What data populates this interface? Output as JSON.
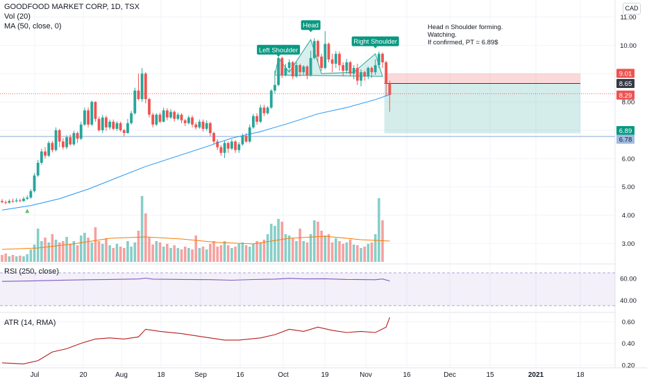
{
  "header": {
    "title": "GOODFOOD MARKET CORP, 1D, TSX",
    "volume_label": "Vol (20)",
    "ma_label": "MA (50, close, 0)"
  },
  "currency": "CAD",
  "note": {
    "line1": "Head n Shoulder forming.",
    "line2": "Watching.",
    "line3": "If confirmed, PT = 6.89$"
  },
  "colors": {
    "up": "#26a69a",
    "down": "#ef5350",
    "ma": "#2196f3",
    "vol_ma": "#f57c00",
    "rsi": "#7e57c2",
    "atr": "#b71c1c",
    "pattern_fill": "#26a69a"
  },
  "chart_data": [
    {
      "type": "candlestick",
      "title": "GOODFOOD MARKET CORP, 1D, TSX",
      "y_axis": {
        "ticks": [
          3.0,
          4.0,
          5.0,
          6.0,
          7.0,
          8.0,
          9.0,
          10.0,
          11.0
        ],
        "ylim": [
          2.35,
          11.6
        ]
      },
      "x_axis": {
        "ticks": [
          "Jul",
          "20",
          "Aug",
          "18",
          "Sep",
          "16",
          "Oct",
          "19",
          "Nov",
          "16",
          "Dec",
          "15",
          "2021",
          "18"
        ]
      },
      "price_labels": [
        {
          "value": "9.01",
          "color": "#ef5350"
        },
        {
          "value": "8.65",
          "color": "#363a45"
        },
        {
          "value": "8.29",
          "color": "#ef5350"
        },
        {
          "value": "6.89",
          "color": "#089981"
        },
        {
          "value": "6.78",
          "color": "#9fbadf"
        }
      ],
      "annotations": [
        "Left Shoulder",
        "Head",
        "Right Shoulder"
      ],
      "position": {
        "entry": 8.65,
        "stop": 9.01,
        "target": 6.89
      },
      "support_line": 6.78,
      "candles": [
        [
          4.5,
          4.46,
          4.57,
          4.42
        ],
        [
          4.46,
          4.44,
          4.52,
          4.38
        ],
        [
          4.44,
          4.5,
          4.56,
          4.4
        ],
        [
          4.5,
          4.49,
          4.58,
          4.44
        ],
        [
          4.49,
          4.52,
          4.6,
          4.45
        ],
        [
          4.52,
          4.5,
          4.58,
          4.46
        ],
        [
          4.5,
          4.58,
          4.65,
          4.47
        ],
        [
          4.58,
          4.62,
          4.7,
          4.53
        ],
        [
          4.62,
          4.85,
          4.92,
          4.58
        ],
        [
          4.85,
          5.4,
          5.48,
          4.8
        ],
        [
          5.4,
          5.85,
          5.95,
          5.35
        ],
        [
          5.85,
          6.25,
          6.35,
          5.78
        ],
        [
          6.25,
          6.1,
          6.4,
          6.0
        ],
        [
          6.1,
          6.55,
          6.62,
          6.05
        ],
        [
          6.55,
          6.3,
          6.62,
          6.22
        ],
        [
          6.3,
          7.0,
          7.1,
          6.25
        ],
        [
          7.0,
          6.6,
          7.05,
          6.4
        ],
        [
          6.6,
          6.4,
          6.72,
          6.32
        ],
        [
          6.4,
          6.75,
          6.82,
          6.33
        ],
        [
          6.75,
          6.5,
          6.85,
          6.45
        ],
        [
          6.5,
          6.9,
          6.98,
          6.45
        ],
        [
          6.9,
          6.7,
          6.95,
          6.55
        ],
        [
          6.7,
          7.2,
          7.3,
          6.65
        ],
        [
          7.2,
          7.7,
          7.8,
          7.15
        ],
        [
          7.7,
          7.2,
          7.8,
          7.1
        ],
        [
          7.2,
          8.0,
          8.05,
          7.15
        ],
        [
          8.0,
          7.4,
          8.02,
          7.3
        ],
        [
          7.4,
          7.0,
          7.48,
          6.95
        ],
        [
          7.0,
          7.45,
          7.55,
          6.9
        ],
        [
          7.45,
          7.1,
          7.52,
          6.98
        ],
        [
          7.1,
          7.3,
          7.38,
          7.02
        ],
        [
          7.3,
          7.05,
          7.38,
          7.0
        ],
        [
          7.05,
          7.25,
          7.32,
          6.98
        ],
        [
          7.25,
          7.0,
          7.3,
          6.95
        ],
        [
          7.0,
          6.9,
          7.05,
          6.78
        ],
        [
          6.9,
          7.25,
          7.4,
          6.88
        ],
        [
          7.25,
          7.6,
          7.68,
          7.2
        ],
        [
          7.6,
          8.4,
          8.5,
          7.55
        ],
        [
          8.4,
          8.1,
          9.0,
          8.05
        ],
        [
          8.1,
          9.0,
          9.2,
          8.0
        ],
        [
          9.0,
          8.1,
          9.05,
          7.95
        ],
        [
          8.1,
          7.55,
          8.15,
          7.45
        ],
        [
          7.55,
          7.2,
          7.62,
          7.1
        ],
        [
          7.2,
          7.55,
          7.6,
          7.15
        ],
        [
          7.55,
          7.3,
          7.62,
          7.25
        ],
        [
          7.3,
          7.7,
          7.8,
          7.28
        ],
        [
          7.7,
          7.45,
          7.78,
          7.35
        ],
        [
          7.45,
          7.65,
          7.75,
          7.4
        ],
        [
          7.65,
          7.4,
          7.7,
          7.3
        ],
        [
          7.4,
          7.55,
          7.62,
          7.35
        ],
        [
          7.55,
          7.35,
          7.6,
          7.25
        ],
        [
          7.35,
          7.25,
          7.4,
          7.15
        ],
        [
          7.25,
          7.45,
          7.52,
          7.2
        ],
        [
          7.45,
          7.2,
          7.52,
          7.1
        ],
        [
          7.2,
          7.1,
          7.28,
          7.02
        ],
        [
          7.1,
          7.3,
          7.38,
          7.05
        ],
        [
          7.3,
          7.05,
          7.38,
          6.95
        ],
        [
          7.05,
          7.25,
          7.35,
          6.98
        ],
        [
          7.25,
          6.9,
          7.3,
          6.8
        ],
        [
          6.9,
          6.6,
          6.95,
          6.5
        ],
        [
          6.6,
          6.4,
          6.68,
          6.3
        ],
        [
          6.4,
          6.2,
          6.48,
          6.1
        ],
        [
          6.2,
          6.55,
          6.62,
          6.02
        ],
        [
          6.55,
          6.35,
          6.6,
          6.2
        ],
        [
          6.35,
          6.6,
          6.68,
          6.3
        ],
        [
          6.6,
          6.3,
          6.65,
          6.2
        ],
        [
          6.3,
          6.5,
          6.58,
          6.2
        ],
        [
          6.5,
          6.8,
          6.88,
          6.45
        ],
        [
          6.8,
          6.6,
          6.9,
          6.55
        ],
        [
          6.6,
          7.1,
          7.2,
          6.55
        ],
        [
          7.1,
          7.5,
          7.58,
          7.05
        ],
        [
          7.5,
          7.3,
          7.6,
          7.2
        ],
        [
          7.3,
          7.8,
          7.9,
          7.25
        ],
        [
          7.8,
          7.6,
          7.9,
          7.5
        ],
        [
          7.6,
          7.8,
          7.85,
          7.55
        ],
        [
          7.8,
          8.4,
          8.45,
          7.75
        ],
        [
          8.4,
          8.6,
          9.1,
          8.3
        ],
        [
          8.6,
          9.55,
          9.6,
          8.55
        ],
        [
          9.55,
          8.95,
          9.6,
          8.85
        ],
        [
          8.95,
          9.2,
          9.35,
          8.9
        ],
        [
          9.2,
          9.4,
          9.5,
          9.05
        ],
        [
          9.4,
          8.9,
          9.45,
          8.8
        ],
        [
          8.9,
          9.3,
          9.4,
          8.85
        ],
        [
          9.3,
          9.05,
          9.35,
          8.9
        ],
        [
          9.05,
          9.25,
          9.3,
          8.95
        ],
        [
          9.25,
          8.95,
          9.3,
          8.8
        ],
        [
          8.95,
          9.55,
          9.8,
          8.9
        ],
        [
          9.55,
          10.15,
          10.25,
          9.5
        ],
        [
          10.15,
          9.6,
          10.2,
          9.4
        ],
        [
          9.6,
          9.2,
          9.7,
          9.1
        ],
        [
          9.2,
          10.05,
          10.5,
          9.15
        ],
        [
          10.05,
          9.5,
          10.1,
          9.4
        ],
        [
          9.5,
          9.35,
          9.7,
          9.05
        ],
        [
          9.35,
          9.7,
          9.8,
          9.2
        ],
        [
          9.7,
          9.3,
          9.78,
          9.1
        ],
        [
          9.3,
          9.1,
          9.4,
          8.9
        ],
        [
          9.1,
          9.4,
          9.52,
          9.0
        ],
        [
          9.4,
          9.0,
          9.45,
          8.9
        ],
        [
          9.0,
          9.2,
          9.3,
          8.8
        ],
        [
          9.2,
          8.75,
          9.35,
          8.6
        ],
        [
          8.75,
          9.05,
          9.15,
          8.55
        ],
        [
          9.05,
          8.9,
          9.1,
          8.75
        ],
        [
          8.9,
          9.2,
          9.25,
          8.8
        ],
        [
          9.2,
          9.05,
          9.25,
          8.85
        ],
        [
          9.05,
          9.3,
          9.5,
          8.95
        ],
        [
          9.3,
          9.7,
          9.78,
          9.2
        ],
        [
          9.7,
          9.4,
          9.75,
          9.2
        ],
        [
          9.4,
          8.65,
          9.45,
          8.2
        ],
        [
          8.65,
          8.25,
          8.75,
          7.65
        ]
      ],
      "ma50": [
        [
          0,
          4.18
        ],
        [
          8,
          4.34
        ],
        [
          16,
          4.58
        ],
        [
          24,
          4.92
        ],
        [
          32,
          5.32
        ],
        [
          40,
          5.72
        ],
        [
          48,
          6.05
        ],
        [
          56,
          6.38
        ],
        [
          64,
          6.72
        ],
        [
          72,
          6.95
        ],
        [
          80,
          7.25
        ],
        [
          88,
          7.58
        ],
        [
          96,
          7.8
        ],
        [
          104,
          8.08
        ],
        [
          108,
          8.26
        ]
      ],
      "volume_scale_max": 100,
      "volume": [
        10,
        12,
        8,
        10,
        8,
        9,
        8,
        11,
        18,
        25,
        48,
        30,
        35,
        28,
        40,
        32,
        28,
        30,
        36,
        26,
        30,
        24,
        38,
        42,
        35,
        28,
        50,
        30,
        26,
        34,
        24,
        20,
        26,
        22,
        20,
        30,
        22,
        28,
        45,
        95,
        70,
        35,
        25,
        30,
        28,
        22,
        26,
        20,
        24,
        20,
        18,
        22,
        20,
        18,
        38,
        20,
        22,
        18,
        26,
        30,
        22,
        24,
        30,
        24,
        20,
        22,
        26,
        28,
        24,
        22,
        26,
        30,
        28,
        32,
        40,
        55,
        52,
        62,
        58,
        40,
        38,
        34,
        30,
        48,
        30,
        28,
        40,
        60,
        58,
        45,
        38,
        40,
        28,
        34,
        30,
        26,
        28,
        32,
        25,
        24,
        20,
        22,
        26,
        28,
        40,
        92,
        60
      ],
      "volume_ma": [
        [
          0,
          18
        ],
        [
          10,
          20
        ],
        [
          20,
          26
        ],
        [
          30,
          34
        ],
        [
          40,
          36
        ],
        [
          50,
          33
        ],
        [
          60,
          28
        ],
        [
          70,
          26
        ],
        [
          80,
          34
        ],
        [
          90,
          37
        ],
        [
          100,
          32
        ],
        [
          108,
          30
        ]
      ]
    },
    {
      "type": "line",
      "title": "RSI (250, close)",
      "y_axis": {
        "ticks": [
          40.0,
          60.0
        ],
        "ylim": [
          32,
          70
        ]
      },
      "band": [
        35,
        65
      ],
      "series": [
        {
          "values": [
            [
              0,
              57.2
            ],
            [
              8,
              57.6
            ],
            [
              16,
              58.2
            ],
            [
              24,
              58.7
            ],
            [
              30,
              59.0
            ],
            [
              38,
              59.4
            ],
            [
              40,
              60.2
            ],
            [
              42,
              59.3
            ],
            [
              50,
              59.0
            ],
            [
              58,
              58.8
            ],
            [
              64,
              58.3
            ],
            [
              70,
              58.9
            ],
            [
              76,
              59.3
            ],
            [
              80,
              60.0
            ],
            [
              84,
              59.5
            ],
            [
              90,
              59.6
            ],
            [
              96,
              59.0
            ],
            [
              104,
              58.7
            ],
            [
              106,
              59.4
            ],
            [
              108,
              57.6
            ]
          ]
        }
      ]
    },
    {
      "type": "line",
      "title": "ATR (14, RMA)",
      "y_axis": {
        "ticks": [
          0.2,
          0.4,
          0.6
        ],
        "ylim": [
          0.18,
          0.66
        ]
      },
      "series": [
        {
          "values": [
            [
              0,
              0.22
            ],
            [
              6,
              0.21
            ],
            [
              10,
              0.24
            ],
            [
              14,
              0.32
            ],
            [
              18,
              0.35
            ],
            [
              22,
              0.4
            ],
            [
              26,
              0.44
            ],
            [
              30,
              0.45
            ],
            [
              34,
              0.44
            ],
            [
              38,
              0.46
            ],
            [
              40,
              0.53
            ],
            [
              44,
              0.51
            ],
            [
              50,
              0.49
            ],
            [
              56,
              0.46
            ],
            [
              62,
              0.43
            ],
            [
              66,
              0.43
            ],
            [
              72,
              0.45
            ],
            [
              76,
              0.48
            ],
            [
              80,
              0.53
            ],
            [
              84,
              0.51
            ],
            [
              88,
              0.55
            ],
            [
              92,
              0.52
            ],
            [
              96,
              0.5
            ],
            [
              100,
              0.51
            ],
            [
              104,
              0.5
            ],
            [
              107,
              0.55
            ],
            [
              108,
              0.64
            ]
          ]
        }
      ]
    }
  ]
}
